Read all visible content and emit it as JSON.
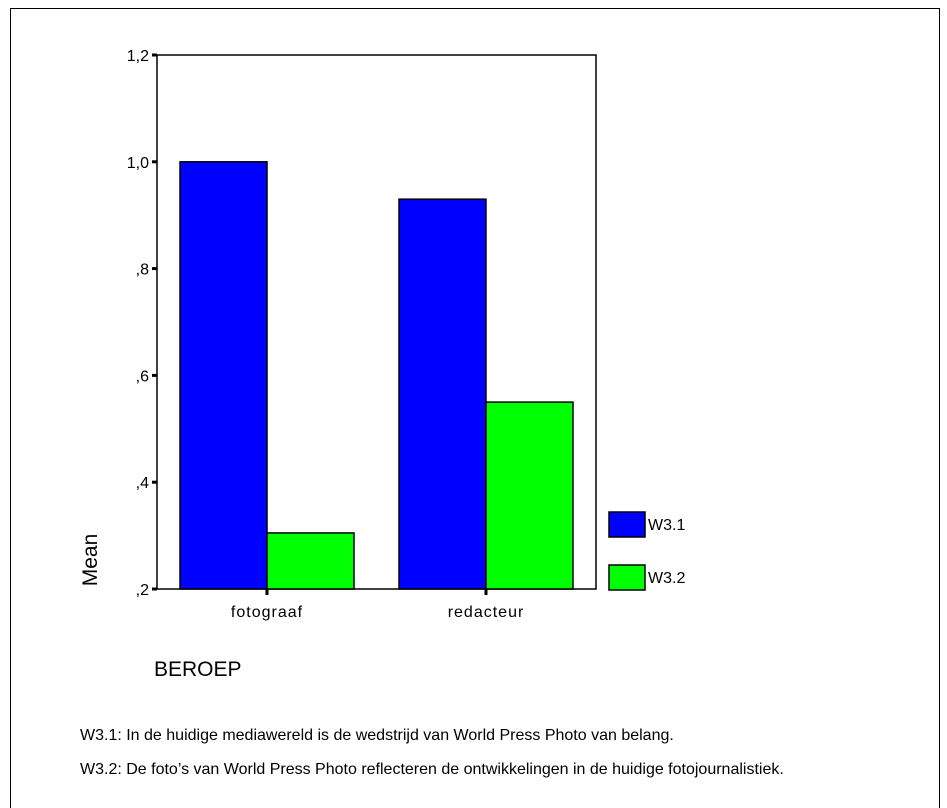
{
  "chart_data": {
    "type": "bar",
    "categories": [
      "fotograaf",
      "redacteur"
    ],
    "series": [
      {
        "name": "W3.1",
        "color": "#0000FF",
        "values": [
          1.0,
          0.93
        ]
      },
      {
        "name": "W3.2",
        "color": "#00FF00",
        "values": [
          0.305,
          0.55
        ]
      }
    ],
    "ylabel": "Mean",
    "xlabel": "BEROEP",
    "ylim": [
      0.2,
      1.2
    ],
    "yticks": [
      0.2,
      0.4,
      0.6,
      0.8,
      1.0,
      1.2
    ],
    "ytick_labels": [
      ",2",
      ",4",
      ",6",
      ",8",
      "1,0",
      "1,2"
    ],
    "grid": false,
    "legend_position": "right"
  },
  "footnotes": [
    "W3.1: In de huidige mediawereld is de wedstrijd van World Press Photo van belang.",
    "W3.2: De foto’s van World Press Photo reflecteren de ontwikkelingen in de huidige fotojournalistiek."
  ]
}
